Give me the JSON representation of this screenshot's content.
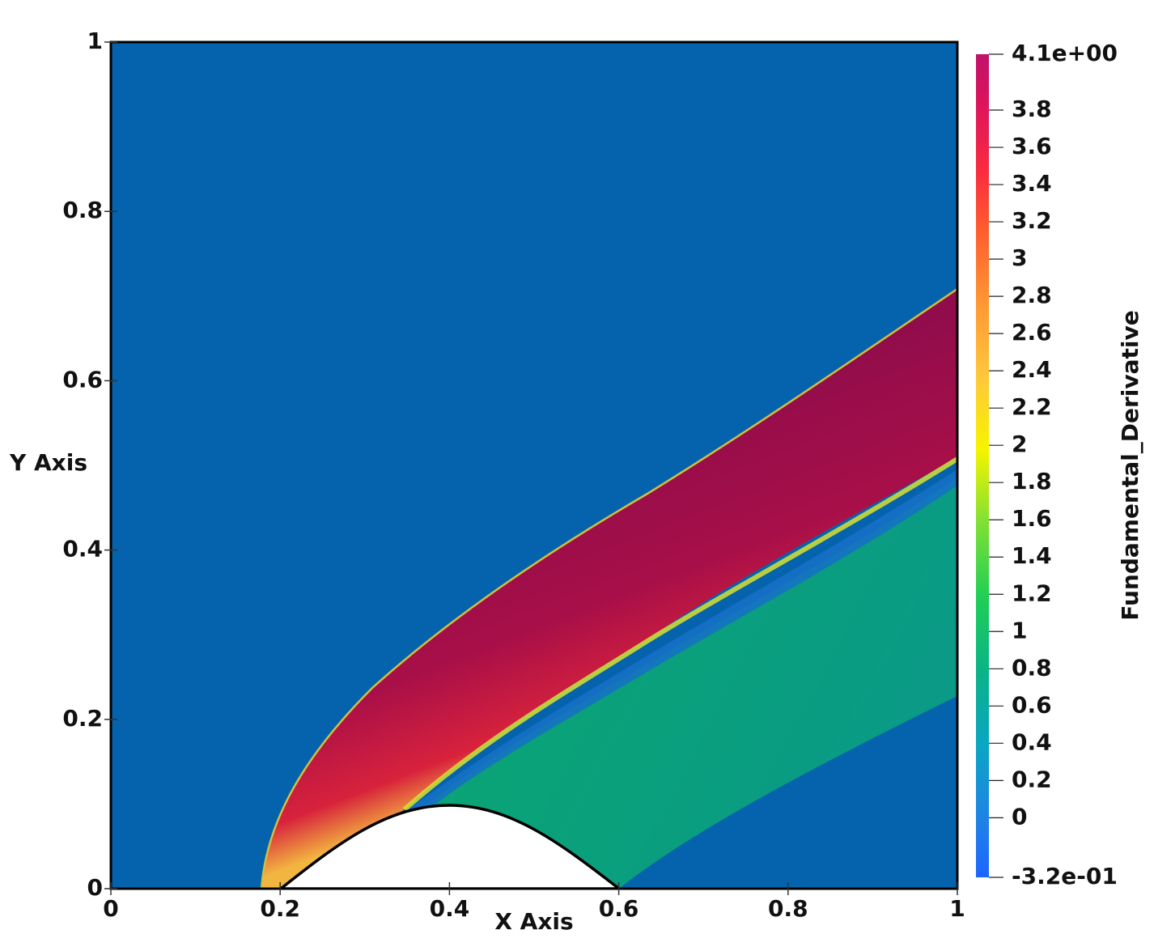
{
  "chart_data": {
    "type": "field",
    "xlabel": "X Axis",
    "ylabel": "Y Axis",
    "xlim": [
      0,
      1
    ],
    "ylim": [
      0,
      1
    ],
    "xticks": [
      0,
      0.2,
      0.4,
      0.6,
      0.8,
      1
    ],
    "yticks": [
      0,
      0.2,
      0.4,
      0.6,
      0.8,
      1
    ],
    "colorbar": {
      "title": "Fundamental_Derivative",
      "lim": [
        -0.32,
        4.1
      ],
      "ticks": [
        {
          "value": 4.1,
          "label": "4.1e+00"
        },
        3.8,
        3.6,
        3.4,
        3.2,
        3,
        2.8,
        2.6,
        2.4,
        2.2,
        2,
        1.8,
        1.6,
        1.4,
        1.2,
        1,
        0.8,
        0.6,
        0.4,
        0.2,
        0,
        {
          "value": -0.32,
          "label": "-3.2e-01"
        }
      ]
    }
  }
}
